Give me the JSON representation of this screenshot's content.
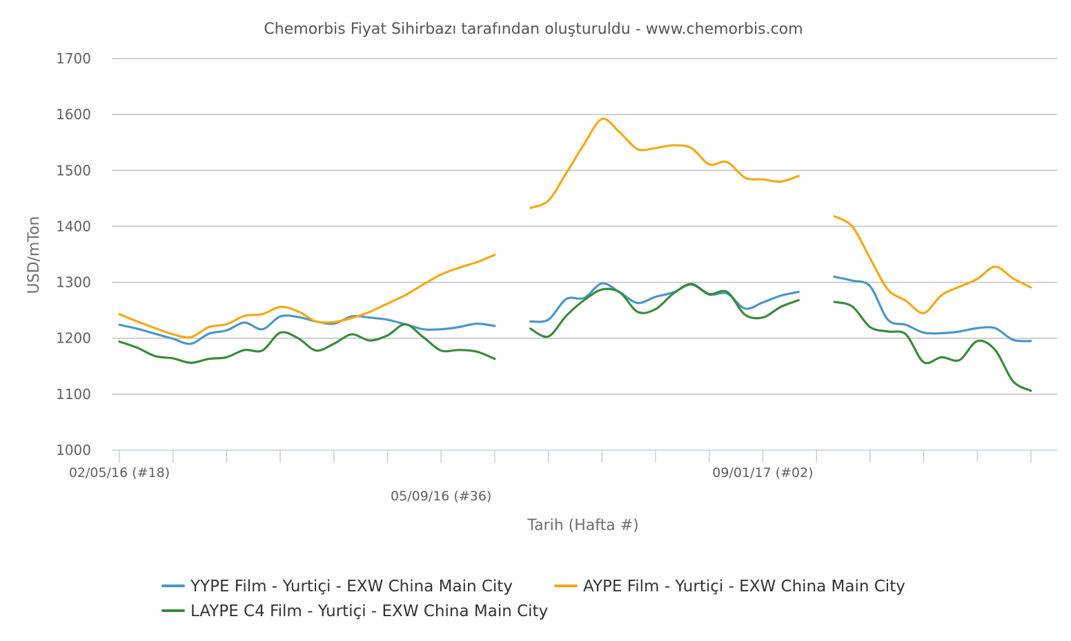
{
  "chart_data": {
    "type": "line",
    "title": "Chemorbis Fiyat Sihirbazı tarafından oluşturuldu - www.chemorbis.com",
    "xlabel": "Tarih (Hafta #)",
    "ylabel": "USD/mTon",
    "ylim": [
      1000,
      1700
    ],
    "yticks": [
      "1700",
      "1600",
      "1500",
      "1400",
      "1300",
      "1200",
      "1100",
      "1000"
    ],
    "xtick_labels": [
      {
        "label": "02/05/16 (#18)",
        "x": 0
      },
      {
        "label": "05/09/16 (#36)",
        "x": 18
      },
      {
        "label": "09/01/17 (#02)",
        "x": 36
      }
    ],
    "x_major_ticks": [
      0,
      3,
      6,
      9,
      12,
      15,
      18,
      21,
      24,
      27,
      30,
      33,
      36,
      39,
      42,
      45,
      48,
      51
    ],
    "grid": true,
    "legend_position": "bottom",
    "series": [
      {
        "name": "YYPE Film - Yurtiçi - EXW China Main City",
        "color": "#4a96c9",
        "segments": [
          [
            [
              0,
              1224
            ],
            [
              1,
              1217
            ],
            [
              2,
              1208
            ],
            [
              3,
              1199
            ],
            [
              4,
              1190
            ],
            [
              5,
              1208
            ],
            [
              6,
              1214
            ],
            [
              7,
              1228
            ],
            [
              8,
              1216
            ],
            [
              9,
              1239
            ],
            [
              10,
              1238
            ],
            [
              11,
              1230
            ],
            [
              12,
              1226
            ],
            [
              13,
              1239
            ],
            [
              14,
              1237
            ],
            [
              15,
              1233
            ],
            [
              16,
              1225
            ],
            [
              17,
              1216
            ],
            [
              18,
              1216
            ],
            [
              19,
              1220
            ],
            [
              20,
              1226
            ],
            [
              21,
              1222
            ]
          ],
          [
            [
              23,
              1230
            ],
            [
              24,
              1233
            ],
            [
              25,
              1270
            ],
            [
              26,
              1272
            ],
            [
              27,
              1298
            ],
            [
              28,
              1282
            ],
            [
              29,
              1263
            ],
            [
              30,
              1274
            ],
            [
              31,
              1282
            ],
            [
              32,
              1296
            ],
            [
              33,
              1278
            ],
            [
              34,
              1280
            ],
            [
              35,
              1253
            ],
            [
              36,
              1264
            ],
            [
              37,
              1276
            ],
            [
              38,
              1283
            ]
          ],
          [
            [
              40,
              1310
            ],
            [
              41,
              1303
            ],
            [
              42,
              1293
            ],
            [
              43,
              1233
            ],
            [
              44,
              1224
            ],
            [
              45,
              1210
            ],
            [
              46,
              1209
            ],
            [
              47,
              1212
            ],
            [
              48,
              1218
            ],
            [
              49,
              1218
            ],
            [
              50,
              1197
            ],
            [
              51,
              1195
            ]
          ]
        ]
      },
      {
        "name": "AYPE Film - Yurtiçi - EXW China Main City",
        "color": "#f5a816",
        "segments": [
          [
            [
              0,
              1243
            ],
            [
              1,
              1230
            ],
            [
              2,
              1218
            ],
            [
              3,
              1207
            ],
            [
              4,
              1202
            ],
            [
              5,
              1220
            ],
            [
              6,
              1225
            ],
            [
              7,
              1240
            ],
            [
              8,
              1243
            ],
            [
              9,
              1256
            ],
            [
              10,
              1248
            ],
            [
              11,
              1230
            ],
            [
              12,
              1229
            ],
            [
              13,
              1236
            ],
            [
              14,
              1247
            ],
            [
              15,
              1262
            ],
            [
              16,
              1277
            ],
            [
              17,
              1296
            ],
            [
              18,
              1314
            ],
            [
              19,
              1326
            ],
            [
              20,
              1336
            ],
            [
              21,
              1349
            ]
          ],
          [
            [
              23,
              1433
            ],
            [
              24,
              1446
            ],
            [
              25,
              1495
            ],
            [
              26,
              1547
            ],
            [
              27,
              1592
            ],
            [
              28,
              1568
            ],
            [
              29,
              1538
            ],
            [
              30,
              1540
            ],
            [
              31,
              1545
            ],
            [
              32,
              1540
            ],
            [
              33,
              1511
            ],
            [
              34,
              1515
            ],
            [
              35,
              1487
            ],
            [
              36,
              1484
            ],
            [
              37,
              1480
            ],
            [
              38,
              1490
            ]
          ],
          [
            [
              40,
              1418
            ],
            [
              41,
              1400
            ],
            [
              42,
              1343
            ],
            [
              43,
              1287
            ],
            [
              44,
              1267
            ],
            [
              45,
              1245
            ],
            [
              46,
              1277
            ],
            [
              47,
              1292
            ],
            [
              48,
              1306
            ],
            [
              49,
              1328
            ],
            [
              50,
              1307
            ],
            [
              51,
              1291
            ]
          ]
        ]
      },
      {
        "name": "LAYPE C4 Film - Yurtiçi - EXW China Main City",
        "color": "#3a8a3c",
        "segments": [
          [
            [
              0,
              1194
            ],
            [
              1,
              1183
            ],
            [
              2,
              1168
            ],
            [
              3,
              1164
            ],
            [
              4,
              1156
            ],
            [
              5,
              1163
            ],
            [
              6,
              1166
            ],
            [
              7,
              1179
            ],
            [
              8,
              1178
            ],
            [
              9,
              1210
            ],
            [
              10,
              1200
            ],
            [
              11,
              1178
            ],
            [
              12,
              1190
            ],
            [
              13,
              1207
            ],
            [
              14,
              1196
            ],
            [
              15,
              1205
            ],
            [
              16,
              1225
            ],
            [
              17,
              1202
            ],
            [
              18,
              1178
            ],
            [
              19,
              1179
            ],
            [
              20,
              1176
            ],
            [
              21,
              1163
            ]
          ],
          [
            [
              23,
              1217
            ],
            [
              24,
              1203
            ],
            [
              25,
              1240
            ],
            [
              26,
              1268
            ],
            [
              27,
              1287
            ],
            [
              28,
              1282
            ],
            [
              29,
              1247
            ],
            [
              30,
              1252
            ],
            [
              31,
              1280
            ],
            [
              32,
              1297
            ],
            [
              33,
              1279
            ],
            [
              34,
              1283
            ],
            [
              35,
              1242
            ],
            [
              36,
              1237
            ],
            [
              37,
              1256
            ],
            [
              38,
              1268
            ]
          ],
          [
            [
              40,
              1265
            ],
            [
              41,
              1257
            ],
            [
              42,
              1220
            ],
            [
              43,
              1212
            ],
            [
              44,
              1207
            ],
            [
              45,
              1157
            ],
            [
              46,
              1166
            ],
            [
              47,
              1161
            ],
            [
              48,
              1195
            ],
            [
              49,
              1179
            ],
            [
              50,
              1123
            ],
            [
              51,
              1106
            ]
          ]
        ]
      }
    ]
  }
}
